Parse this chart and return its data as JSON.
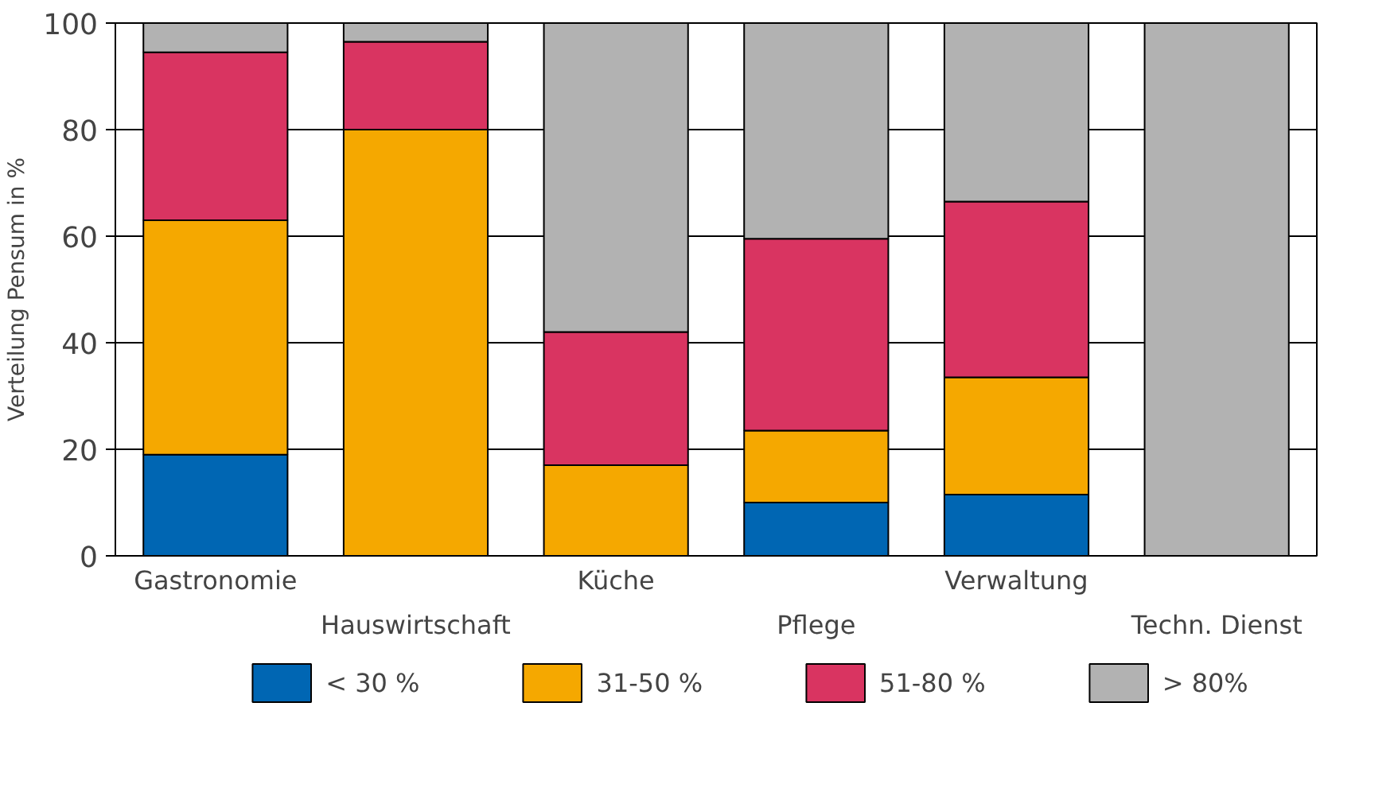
{
  "chart_data": {
    "type": "bar",
    "stacked": true,
    "ylabel": "Verteilung Pensum in %",
    "categories": [
      "Gastronomie",
      "Hauswirtschaft",
      "Küche",
      "Pflege",
      "Verwaltung",
      "Techn. Dienst"
    ],
    "series": [
      {
        "name": "< 30 %",
        "color": "#0066b3",
        "values": [
          19,
          0,
          0,
          10,
          11.5,
          0
        ]
      },
      {
        "name": "31-50 %",
        "color": "#f5a800",
        "values": [
          44,
          80,
          17,
          13.5,
          22,
          0
        ]
      },
      {
        "name": "51-80 %",
        "color": "#d93461",
        "values": [
          31.5,
          16.5,
          25,
          36,
          33,
          0
        ]
      },
      {
        "name": "> 80%",
        "color": "#b2b2b2",
        "values": [
          5.5,
          3.5,
          58,
          40.5,
          33.5,
          100
        ]
      }
    ],
    "ylim": [
      0,
      100
    ],
    "yticks": [
      0,
      20,
      40,
      60,
      80,
      100
    ],
    "grid": "y",
    "legend": "bottom"
  }
}
